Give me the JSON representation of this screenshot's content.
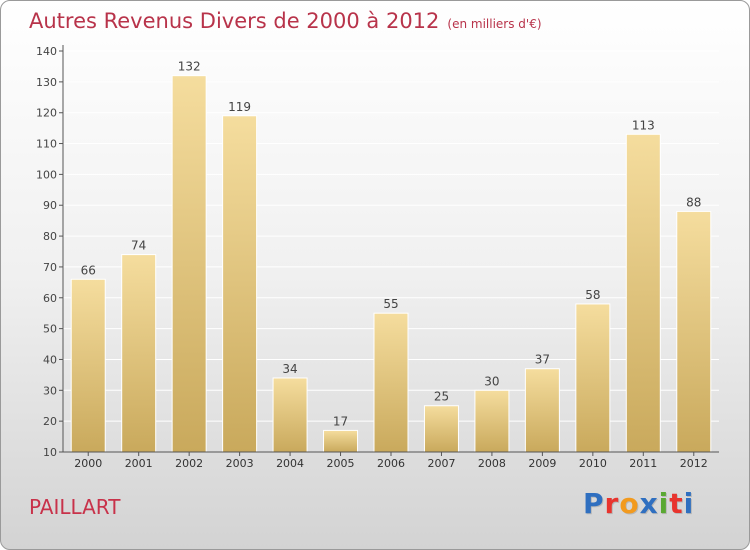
{
  "header": {
    "title": "Autres Revenus Divers de 2000 à 2012",
    "subtitle": "(en milliers d'€)"
  },
  "footer": {
    "location": "PAILLART",
    "logo_text": "Proxiti",
    "logo_colors": [
      "#2f6fc0",
      "#e8342e",
      "#f29a1e",
      "#2f6fc0",
      "#5aa832",
      "#e8342e",
      "#2f6fc0"
    ]
  },
  "colors": {
    "bar_light": "#f5dd9e",
    "bar_dark": "#c9a95c",
    "title": "#b8334a",
    "axis": "#555555"
  },
  "chart_data": {
    "type": "bar",
    "title": "Autres Revenus Divers de 2000 à 2012",
    "subtitle": "(en milliers d'€)",
    "categories": [
      "2000",
      "2001",
      "2002",
      "2003",
      "2004",
      "2005",
      "2006",
      "2007",
      "2008",
      "2009",
      "2010",
      "2011",
      "2012"
    ],
    "values": [
      66,
      74,
      132,
      119,
      34,
      17,
      55,
      25,
      30,
      37,
      58,
      113,
      88
    ],
    "ylim": [
      10,
      140
    ],
    "yticks": [
      10,
      20,
      30,
      40,
      50,
      60,
      70,
      80,
      90,
      100,
      110,
      120,
      130,
      140
    ],
    "grid": true,
    "legend": "none"
  }
}
